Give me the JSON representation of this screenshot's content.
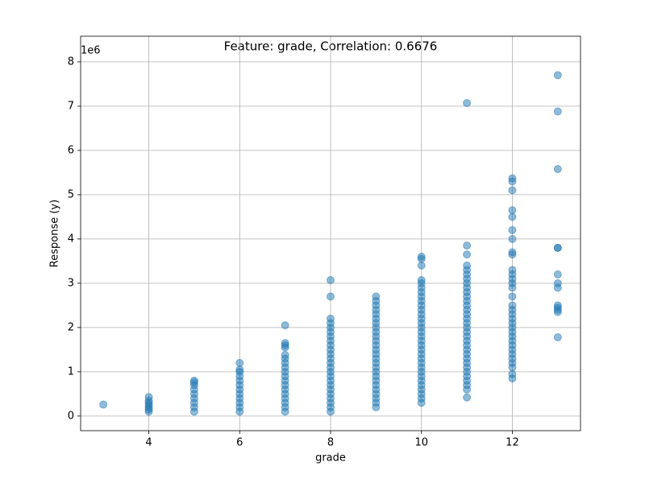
{
  "chart_data": {
    "type": "scatter",
    "title": "Feature: grade, Correlation: 0.6676",
    "x_label": "grade",
    "y_label": "Response (y)",
    "y_offset_label": "1e6",
    "xlim": [
      2.5,
      13.5
    ],
    "ylim": [
      -0.33,
      8.58
    ],
    "xticks": [
      4,
      6,
      8,
      10,
      12
    ],
    "yticks": [
      0,
      1,
      2,
      3,
      4,
      5,
      6,
      7,
      8
    ],
    "grid": true,
    "color": "#1f77b4",
    "x": [
      3,
      4,
      4,
      4,
      4,
      4,
      4,
      4,
      5,
      5,
      5,
      5,
      5,
      5,
      5,
      5,
      5,
      6,
      6,
      6,
      6,
      6,
      6,
      6,
      6,
      6,
      6,
      6,
      6,
      7,
      7,
      7,
      7,
      7,
      7,
      7,
      7,
      7,
      7,
      7,
      7,
      7,
      7,
      7,
      7,
      7,
      7,
      8,
      8,
      8,
      8,
      8,
      8,
      8,
      8,
      8,
      8,
      8,
      8,
      8,
      8,
      8,
      8,
      8,
      8,
      8,
      8,
      8,
      8,
      8,
      8,
      9,
      9,
      9,
      9,
      9,
      9,
      9,
      9,
      9,
      9,
      9,
      9,
      9,
      9,
      9,
      9,
      9,
      9,
      9,
      9,
      9,
      9,
      9,
      9,
      9,
      9,
      10,
      10,
      10,
      10,
      10,
      10,
      10,
      10,
      10,
      10,
      10,
      10,
      10,
      10,
      10,
      10,
      10,
      10,
      10,
      10,
      10,
      10,
      10,
      10,
      10,
      10,
      10,
      10,
      10,
      10,
      10,
      10,
      11,
      11,
      11,
      11,
      11,
      11,
      11,
      11,
      11,
      11,
      11,
      11,
      11,
      11,
      11,
      11,
      11,
      11,
      11,
      11,
      11,
      11,
      11,
      11,
      11,
      11,
      11,
      11,
      11,
      11,
      11,
      11,
      11,
      12,
      12,
      12,
      12,
      12,
      12,
      12,
      12,
      12,
      12,
      12,
      12,
      12,
      12,
      12,
      12,
      12,
      12,
      12,
      12,
      12,
      12,
      12,
      12,
      12,
      12,
      12,
      12,
      12,
      12,
      12,
      12,
      13,
      13,
      13,
      13,
      13,
      13,
      13,
      13,
      13,
      13,
      13,
      13,
      13
    ],
    "values": [
      0.26,
      0.1,
      0.15,
      0.2,
      0.25,
      0.3,
      0.35,
      0.43,
      0.1,
      0.2,
      0.3,
      0.4,
      0.5,
      0.6,
      0.7,
      0.76,
      0.8,
      0.1,
      0.2,
      0.3,
      0.4,
      0.5,
      0.6,
      0.7,
      0.8,
      0.9,
      1.0,
      1.05,
      1.2,
      0.1,
      0.2,
      0.3,
      0.4,
      0.5,
      0.6,
      0.7,
      0.8,
      0.9,
      1.0,
      1.1,
      1.2,
      1.3,
      1.38,
      1.55,
      1.6,
      1.65,
      2.05,
      0.1,
      0.2,
      0.3,
      0.4,
      0.5,
      0.6,
      0.7,
      0.8,
      0.9,
      1.0,
      1.1,
      1.2,
      1.3,
      1.4,
      1.5,
      1.6,
      1.7,
      1.8,
      1.9,
      2.0,
      2.1,
      2.2,
      2.7,
      3.07,
      0.2,
      0.3,
      0.4,
      0.5,
      0.6,
      0.7,
      0.8,
      0.9,
      1.0,
      1.1,
      1.2,
      1.3,
      1.4,
      1.5,
      1.6,
      1.7,
      1.8,
      1.9,
      2.0,
      2.1,
      2.2,
      2.3,
      2.4,
      2.5,
      2.6,
      2.7,
      0.3,
      0.4,
      0.5,
      0.6,
      0.7,
      0.8,
      0.9,
      1.0,
      1.1,
      1.2,
      1.3,
      1.4,
      1.5,
      1.6,
      1.7,
      1.8,
      1.9,
      2.0,
      2.1,
      2.2,
      2.3,
      2.4,
      2.5,
      2.6,
      2.7,
      2.8,
      2.9,
      3.0,
      3.07,
      3.4,
      3.55,
      3.6,
      0.42,
      0.6,
      0.7,
      0.8,
      0.9,
      1.0,
      1.1,
      1.2,
      1.3,
      1.4,
      1.5,
      1.6,
      1.7,
      1.8,
      1.9,
      2.0,
      2.1,
      2.2,
      2.3,
      2.4,
      2.5,
      2.6,
      2.7,
      2.8,
      2.9,
      3.0,
      3.1,
      3.2,
      3.3,
      3.4,
      3.65,
      3.85,
      7.07,
      0.85,
      0.95,
      1.1,
      1.2,
      1.3,
      1.4,
      1.5,
      1.6,
      1.7,
      1.8,
      1.9,
      2.0,
      2.1,
      2.2,
      2.3,
      2.4,
      2.5,
      2.7,
      2.9,
      3.0,
      3.1,
      3.2,
      3.3,
      3.65,
      3.7,
      4.0,
      4.2,
      4.5,
      4.65,
      5.1,
      5.3,
      5.37,
      1.78,
      2.35,
      2.4,
      2.45,
      2.5,
      2.9,
      3.0,
      3.2,
      3.8,
      3.8,
      5.58,
      6.88,
      7.7
    ]
  }
}
